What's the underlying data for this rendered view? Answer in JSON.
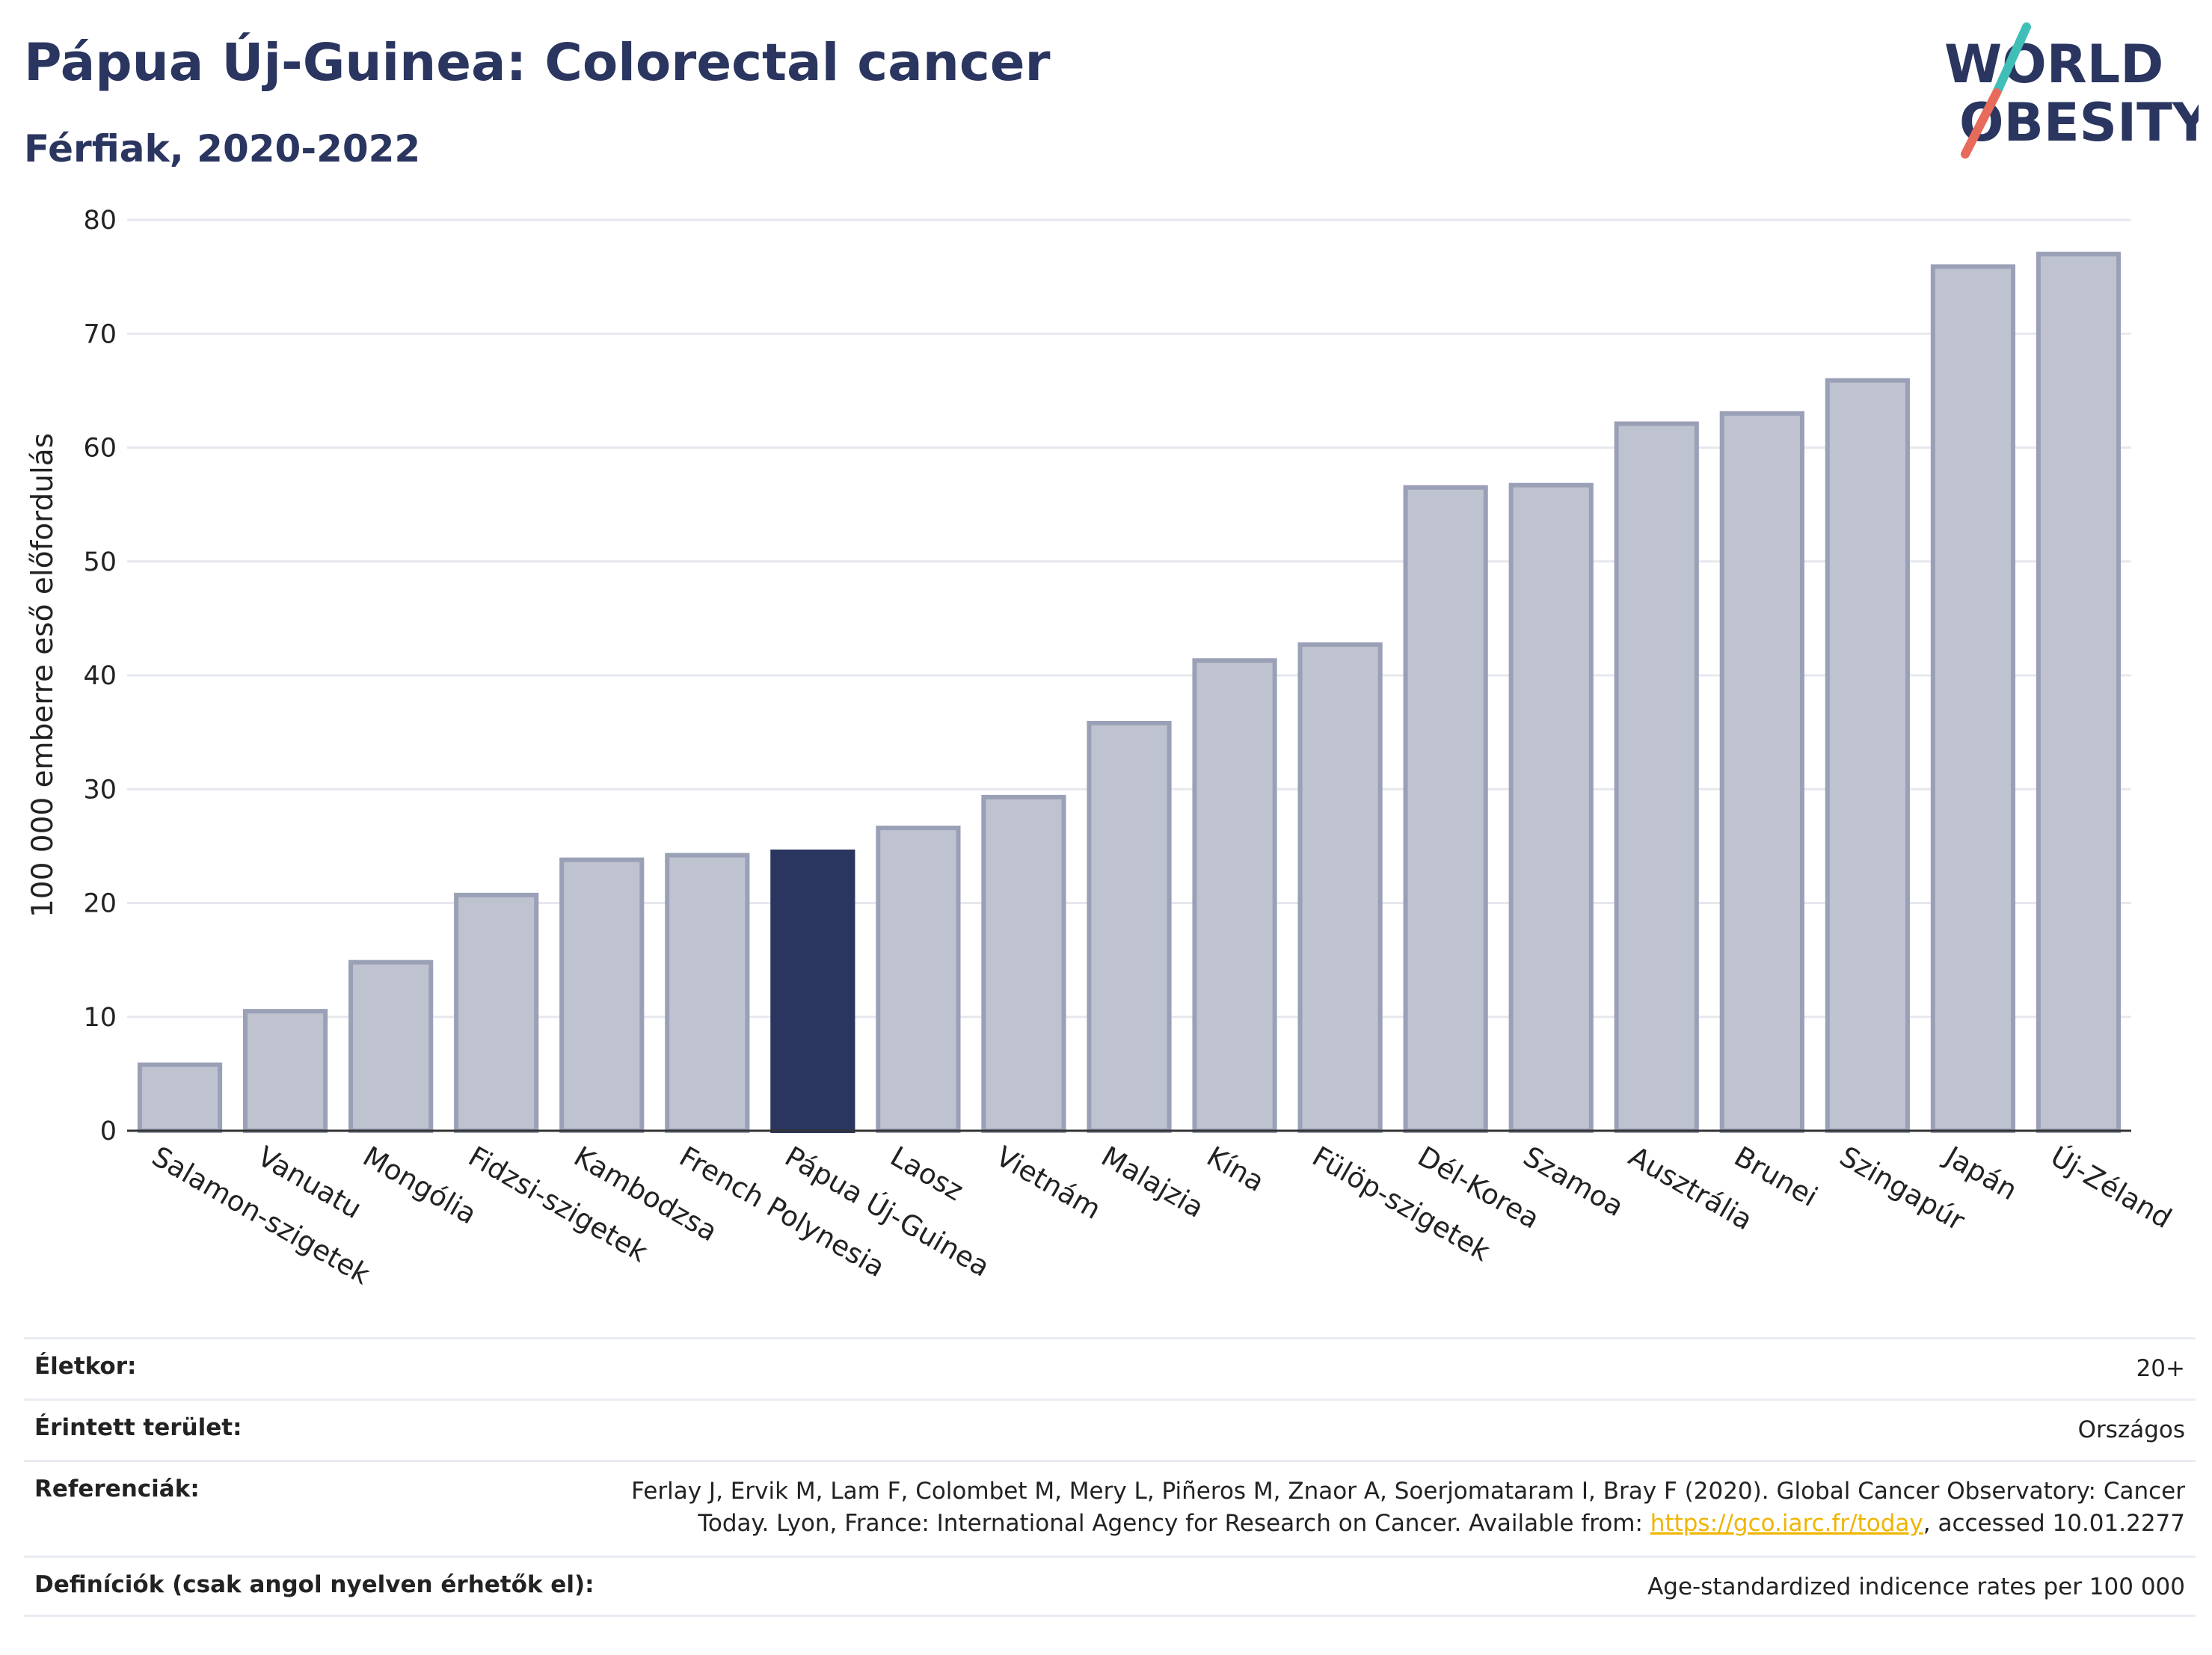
{
  "header": {
    "title": "Pápua Új-Guinea: Colorectal cancer",
    "subtitle": "Férfiak, 2020-2022"
  },
  "logo": {
    "line1": "WORLD",
    "line2": "OBESITY",
    "colors": {
      "text": "#2a3560",
      "slash_top": "#3fbfb7",
      "slash_bottom": "#e86a5a"
    }
  },
  "chart_data": {
    "type": "bar",
    "ylabel": "100 000 emberre eső előfordulás",
    "xlabel": "",
    "ylim": [
      0,
      80
    ],
    "yticks": [
      0,
      10,
      20,
      30,
      40,
      50,
      60,
      70,
      80
    ],
    "grid": true,
    "highlight": "Pápua Új-Guinea",
    "colors": {
      "bar": "#bfc3d0",
      "bar_edge": "#9aa0b6",
      "highlight": "#2a3560",
      "grid": "#e6e8ef"
    },
    "categories": [
      "Salamon-szigetek",
      "Vanuatu",
      "Mongólia",
      "Fidzsi-szigetek",
      "Kambodzsa",
      "French Polynesia",
      "Pápua Új-Guinea",
      "Laosz",
      "Vietnám",
      "Malajzia",
      "Kína",
      "Fülöp-szigetek",
      "Dél-Korea",
      "Szamoa",
      "Ausztrália",
      "Brunei",
      "Szingapúr",
      "Japán",
      "Új-Zéland"
    ],
    "values": [
      5.8,
      10.5,
      14.8,
      20.7,
      23.8,
      24.2,
      24.5,
      26.6,
      29.3,
      35.8,
      41.3,
      42.7,
      56.5,
      56.7,
      62.1,
      63.0,
      65.9,
      75.9,
      77.0
    ]
  },
  "info": {
    "age_label": "Életkor:",
    "age_value": "20+",
    "area_label": "Érintett terület:",
    "area_value": "Országos",
    "ref_label": "Referenciák:",
    "ref_line1": "Ferlay J, Ervik M, Lam F, Colombet M, Mery L, Piñeros M, Znaor A, Soerjomataram I, Bray F (2020). Global Cancer Observatory: Cancer",
    "ref_line2_pre": "Today. Lyon, France: International Agency for Research on Cancer. Available from: ",
    "ref_link": "https://gco.iarc.fr/today",
    "ref_line2_post": ", accessed 10.01.2277",
    "def_label": "Definíciók (csak angol nyelven érhetők el):",
    "def_value": "Age-standardized indicence rates per 100 000"
  }
}
